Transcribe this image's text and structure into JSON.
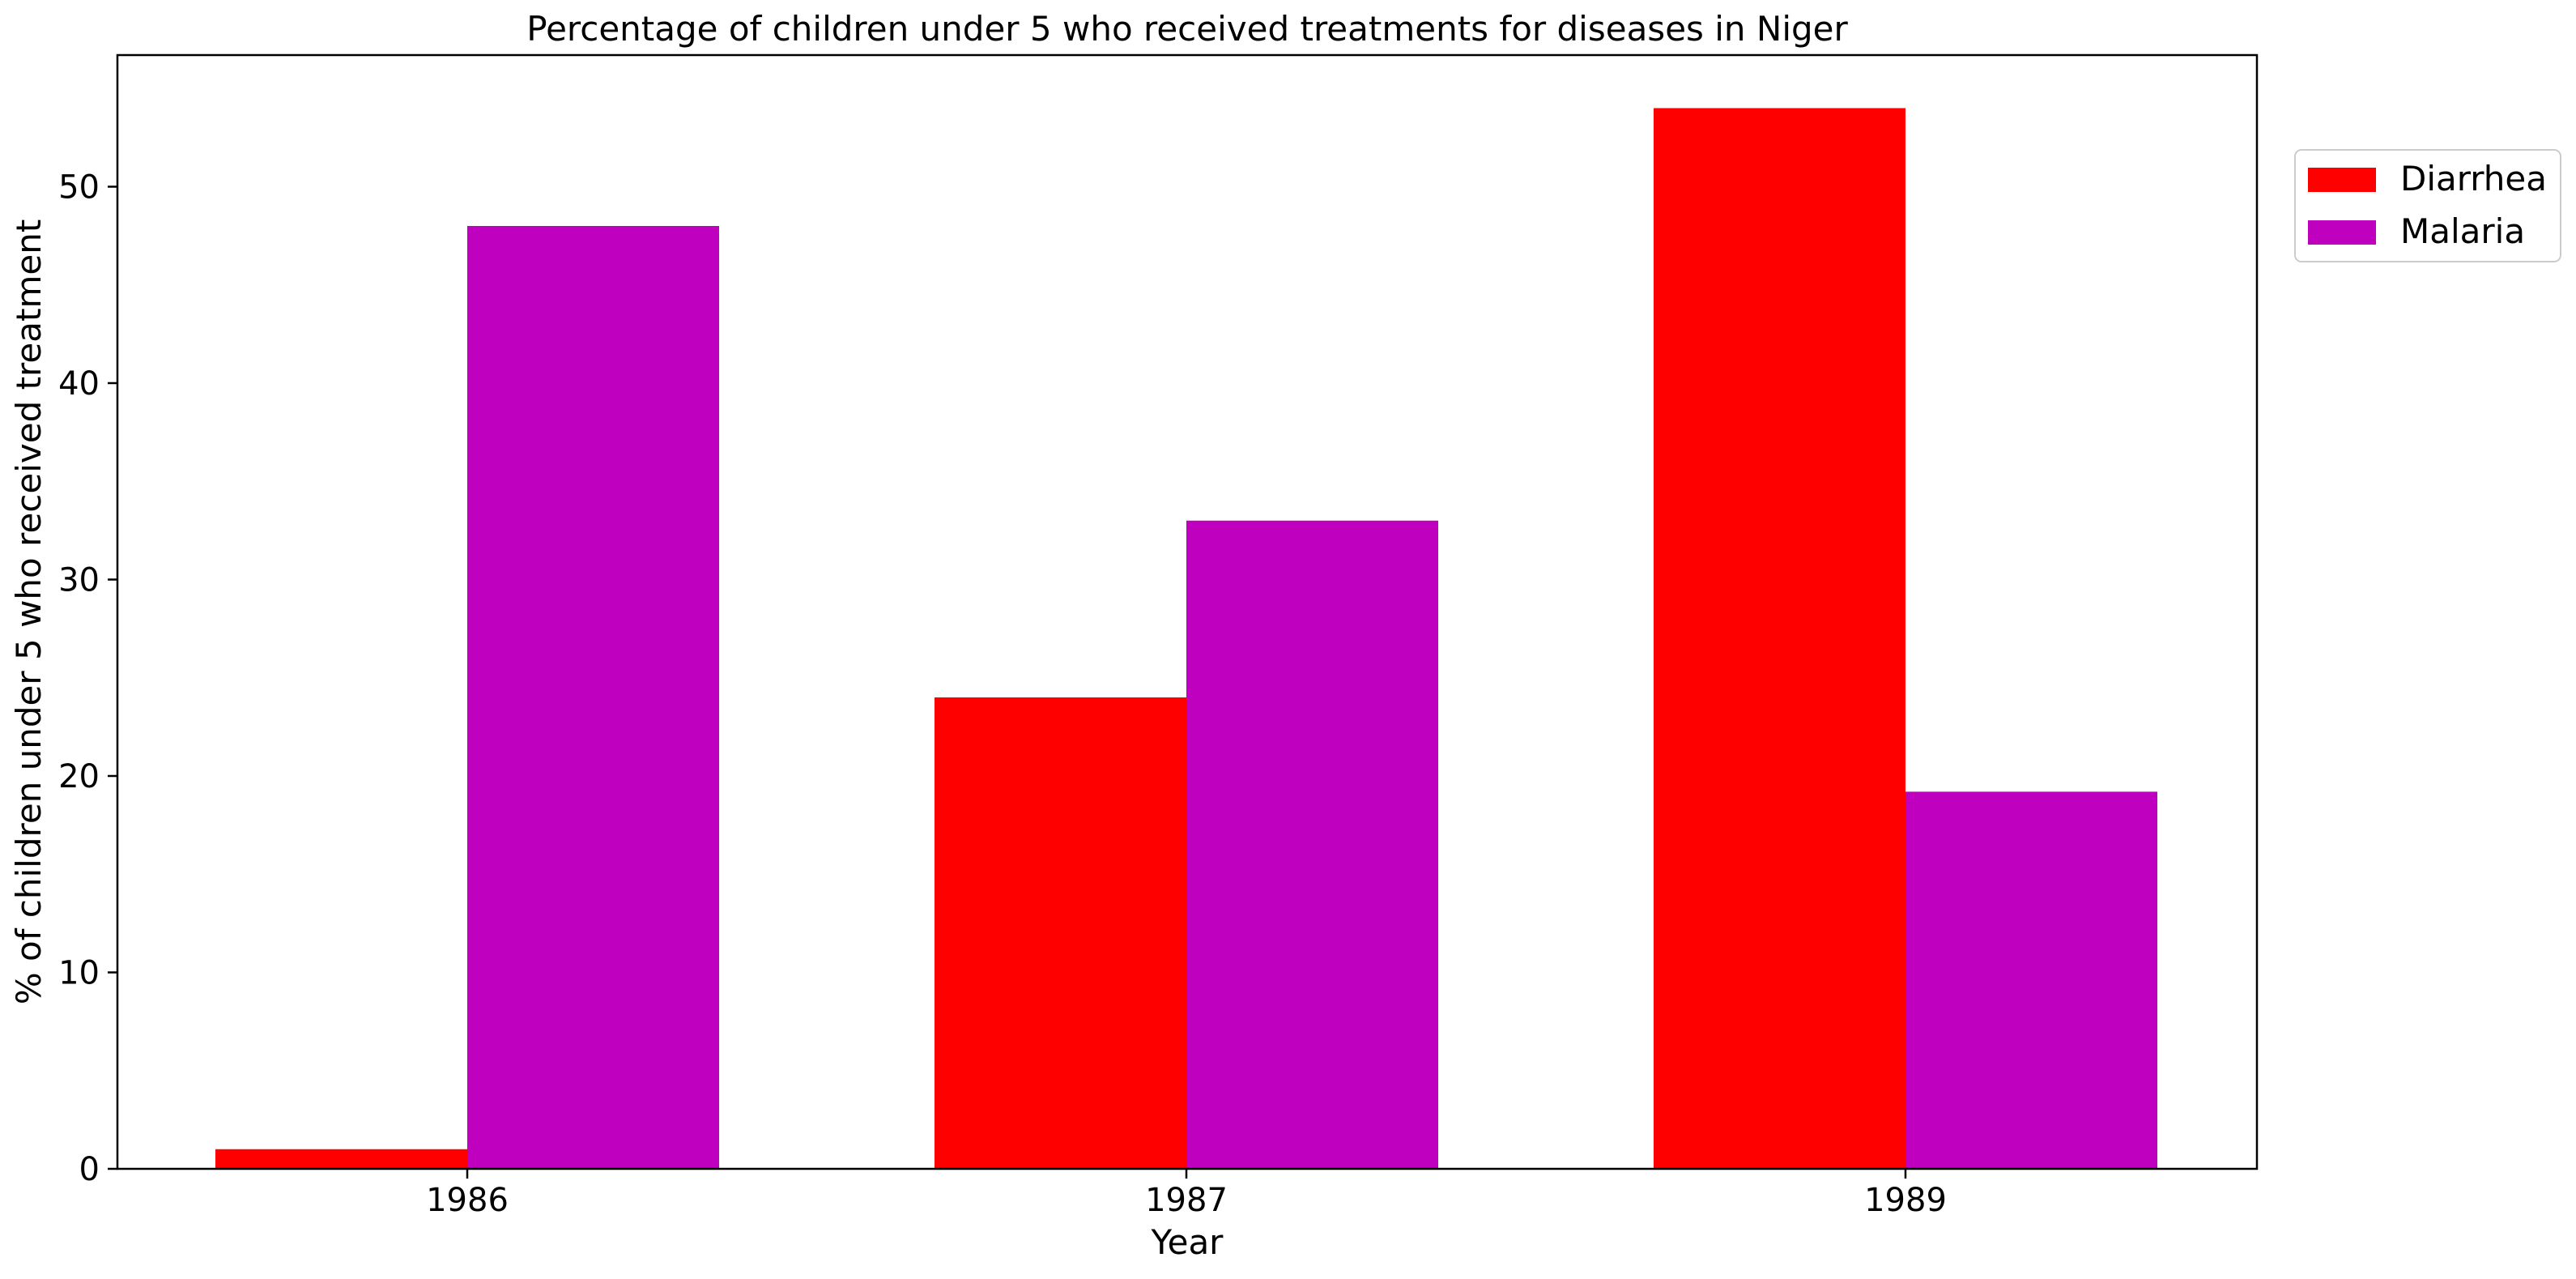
{
  "chart_data": {
    "type": "bar",
    "title": "Percentage of children under 5 who received treatments for diseases in Niger",
    "xlabel": "Year",
    "ylabel": "% of children under 5 who received treatment",
    "categories": [
      "1986",
      "1987",
      "1989"
    ],
    "series": [
      {
        "name": "Diarrhea",
        "color": "#ff0000",
        "values": [
          1,
          24,
          54
        ]
      },
      {
        "name": "Malaria",
        "color": "#bf00bf",
        "values": [
          48,
          33,
          19.2
        ]
      }
    ],
    "ylim": [
      0,
      56.7
    ],
    "yticks": [
      0,
      10,
      20,
      30,
      40,
      50
    ],
    "grid": false,
    "legend_position": "upper-right, outside plot"
  }
}
